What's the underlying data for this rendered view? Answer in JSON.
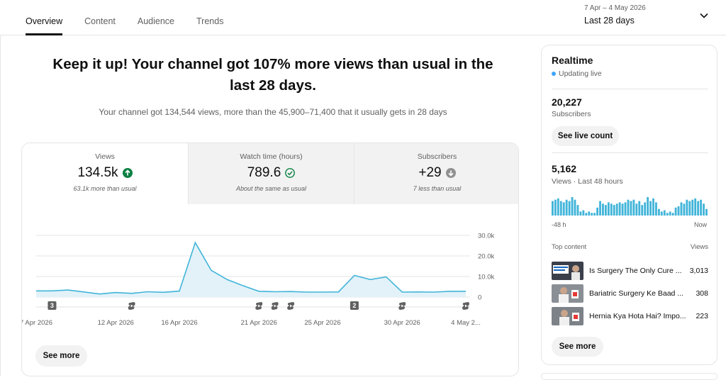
{
  "tabs": [
    {
      "label": "Overview",
      "active": true
    },
    {
      "label": "Content",
      "active": false
    },
    {
      "label": "Audience",
      "active": false
    },
    {
      "label": "Trends",
      "active": false
    }
  ],
  "date_range": {
    "range": "7 Apr – 4 May 2026",
    "label": "Last 28 days",
    "icon": "chevron-down-icon"
  },
  "summary": {
    "headline": "Keep it up! Your channel got 107% more views than usual in the last 28 days.",
    "subline": "Your channel got 134,544 views, more than the 45,900–71,400 that it usually gets in 28 days"
  },
  "metrics": [
    {
      "label": "Views",
      "value": "134.5k",
      "note": "63.1k more than usual",
      "icon": "arrow-up-icon",
      "icon_color": "#0b8043"
    },
    {
      "label": "Watch time (hours)",
      "value": "789.6",
      "note": "About the same as usual",
      "icon": "check-circle-icon",
      "icon_color": "#0b8043"
    },
    {
      "label": "Subscribers",
      "value": "+29",
      "note": "7 less than usual",
      "icon": "arrow-down-icon",
      "icon_color": "#909090"
    }
  ],
  "chart_data": {
    "type": "area",
    "x": [
      "7 Apr",
      "8 Apr",
      "9 Apr",
      "10 Apr",
      "11 Apr",
      "12 Apr",
      "13 Apr",
      "14 Apr",
      "15 Apr",
      "16 Apr",
      "17 Apr",
      "18 Apr",
      "19 Apr",
      "20 Apr",
      "21 Apr",
      "22 Apr",
      "23 Apr",
      "24 Apr",
      "25 Apr",
      "26 Apr",
      "27 Apr",
      "28 Apr",
      "29 Apr",
      "30 Apr",
      "1 May",
      "2 May",
      "3 May",
      "4 May"
    ],
    "series": [
      {
        "values": [
          3000,
          3000,
          3400,
          2500,
          1500,
          2200,
          1800,
          2600,
          2300,
          2900,
          26500,
          13000,
          8500,
          5500,
          2800,
          2600,
          2700,
          2400,
          2400,
          2500,
          10500,
          8500,
          9800,
          2400,
          2500,
          2400,
          2800,
          2800
        ]
      }
    ],
    "xtick_labels": [
      "7 Apr 2026",
      "12 Apr 2026",
      "16 Apr 2026",
      "21 Apr 2026",
      "25 Apr 2026",
      "30 Apr 2026",
      "4 May 2..."
    ],
    "xtick_positions": [
      "7 Apr",
      "12 Apr",
      "16 Apr",
      "21 Apr",
      "25 Apr",
      "30 Apr",
      "4 May"
    ],
    "yticks": [
      "30.0k",
      "20.0k",
      "10.0k",
      "0"
    ],
    "ylim": [
      0,
      30000
    ],
    "area_color": "#e3f2f9",
    "line_color": "#41b4d9",
    "grid": true,
    "markers": [
      {
        "x": "8 Apr",
        "kind": "count",
        "label": "3"
      },
      {
        "x": "13 Apr",
        "kind": "shorts"
      },
      {
        "x": "21 Apr",
        "kind": "shorts"
      },
      {
        "x": "22 Apr",
        "kind": "shorts"
      },
      {
        "x": "23 Apr",
        "kind": "shorts"
      },
      {
        "x": "27 Apr",
        "kind": "count",
        "label": "2"
      },
      {
        "x": "30 Apr",
        "kind": "shorts"
      },
      {
        "x": "4 May",
        "kind": "shorts"
      }
    ]
  },
  "chart_see_more": "See more",
  "realtime": {
    "title": "Realtime",
    "status": "Updating live",
    "subscribers": {
      "value": "20,227",
      "label": "Subscribers",
      "button": "See live count"
    },
    "views": {
      "value": "5,162",
      "label": "Views · Last 48 hours"
    },
    "bars": [
      11,
      12,
      13,
      11,
      10,
      12,
      11,
      14,
      12,
      8,
      3,
      4,
      2,
      3,
      2,
      2,
      6,
      11,
      9,
      8,
      10,
      9,
      8,
      9,
      10,
      9,
      10,
      12,
      11,
      12,
      9,
      11,
      8,
      10,
      14,
      11,
      13,
      10,
      5,
      3,
      4,
      2,
      3,
      2,
      6,
      7,
      10,
      9,
      12,
      11,
      12,
      13,
      11,
      12,
      9,
      5
    ],
    "bar_color": "#41b4d9",
    "axis_left": "-48 h",
    "axis_right": "Now",
    "top_content_label": "Top content",
    "top_content_metric": "Views",
    "items": [
      {
        "title": "Is Surgery The Only Cure ...",
        "views": "3,013"
      },
      {
        "title": "Bariatric Surgery Ke Baad ...",
        "views": "308"
      },
      {
        "title": "Hernia Kya Hota Hai? Impo...",
        "views": "223"
      }
    ],
    "see_more": "See more"
  }
}
